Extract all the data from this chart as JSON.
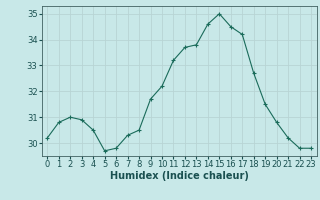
{
  "x": [
    0,
    1,
    2,
    3,
    4,
    5,
    6,
    7,
    8,
    9,
    10,
    11,
    12,
    13,
    14,
    15,
    16,
    17,
    18,
    19,
    20,
    21,
    22,
    23
  ],
  "y": [
    30.2,
    30.8,
    31.0,
    30.9,
    30.5,
    29.7,
    29.8,
    30.3,
    30.5,
    31.7,
    32.2,
    33.2,
    33.7,
    33.8,
    34.6,
    35.0,
    34.5,
    34.2,
    32.7,
    31.5,
    30.8,
    30.2,
    29.8,
    29.8
  ],
  "line_color": "#1a6b5a",
  "marker": "+",
  "background_color": "#c8e8e8",
  "grid_color": "#b8d4d4",
  "axis_color": "#406060",
  "xlabel": "Humidex (Indice chaleur)",
  "ylim": [
    29.5,
    35.3
  ],
  "xlim": [
    -0.5,
    23.5
  ],
  "yticks": [
    30,
    31,
    32,
    33,
    34,
    35
  ],
  "xticks": [
    0,
    1,
    2,
    3,
    4,
    5,
    6,
    7,
    8,
    9,
    10,
    11,
    12,
    13,
    14,
    15,
    16,
    17,
    18,
    19,
    20,
    21,
    22,
    23
  ],
  "font_color": "#1a5050",
  "font_size": 6,
  "label_font_size": 7
}
